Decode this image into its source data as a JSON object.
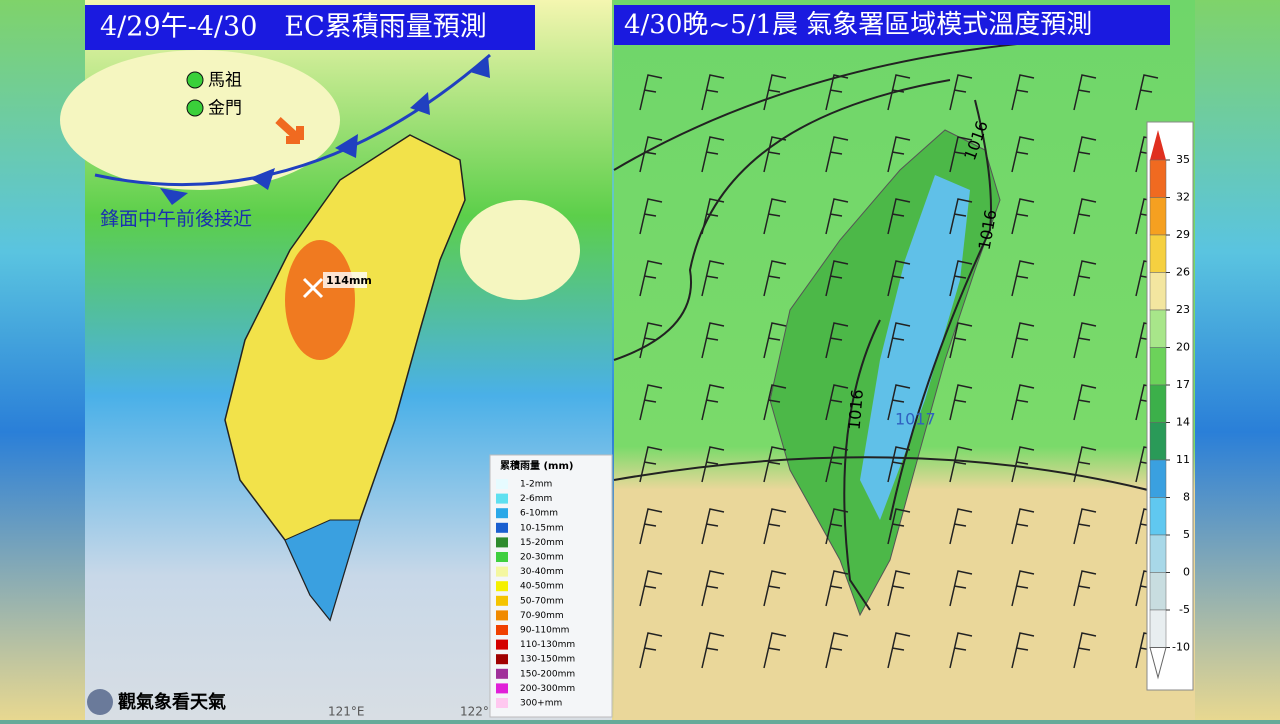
{
  "left_panel": {
    "title": "4/29午-4/30　EC累積雨量預測",
    "stations": [
      "馬祖",
      "金門"
    ],
    "front_label": "鋒面中午前後接近",
    "max_label": "114mm",
    "lon_labels": [
      "121°E",
      "122°"
    ],
    "watermark": "觀氣象看天氣",
    "legend": {
      "title": "累積雨量 (mm)",
      "items": [
        {
          "label": "1-2mm",
          "color": "#e6fbff"
        },
        {
          "label": "2-6mm",
          "color": "#5fe0f0"
        },
        {
          "label": "6-10mm",
          "color": "#2aa8e8"
        },
        {
          "label": "10-15mm",
          "color": "#1a5fd0"
        },
        {
          "label": "15-20mm",
          "color": "#2e8b2e"
        },
        {
          "label": "20-30mm",
          "color": "#3fcf3f"
        },
        {
          "label": "30-40mm",
          "color": "#f4f7a0"
        },
        {
          "label": "40-50mm",
          "color": "#f5f000"
        },
        {
          "label": "50-70mm",
          "color": "#f5c400"
        },
        {
          "label": "70-90mm",
          "color": "#f08a00"
        },
        {
          "label": "90-110mm",
          "color": "#f04000"
        },
        {
          "label": "110-130mm",
          "color": "#d40000"
        },
        {
          "label": "130-150mm",
          "color": "#a00000"
        },
        {
          "label": "150-200mm",
          "color": "#a0309a"
        },
        {
          "label": "200-300mm",
          "color": "#e020d8"
        },
        {
          "label": "300+mm",
          "color": "#ffc8f0"
        }
      ]
    }
  },
  "right_panel": {
    "title": "4/30晚~5/1晨 氣象署區域模式溫度預測",
    "isobars": [
      "1016",
      "1016",
      "1016",
      "1017"
    ],
    "colorbar": {
      "ticks": [
        35,
        32,
        29,
        26,
        23,
        20,
        17,
        14,
        11,
        8,
        5,
        0,
        -5,
        -10
      ],
      "colors": [
        "#e03020",
        "#f06a20",
        "#f5a020",
        "#f5d040",
        "#f3e6a0",
        "#a8e68a",
        "#6cd25a",
        "#3cb04a",
        "#2a9a58",
        "#3aa0e0",
        "#60c8f0",
        "#a8d8e8",
        "#c8dde0",
        "#e8eef0"
      ]
    }
  }
}
